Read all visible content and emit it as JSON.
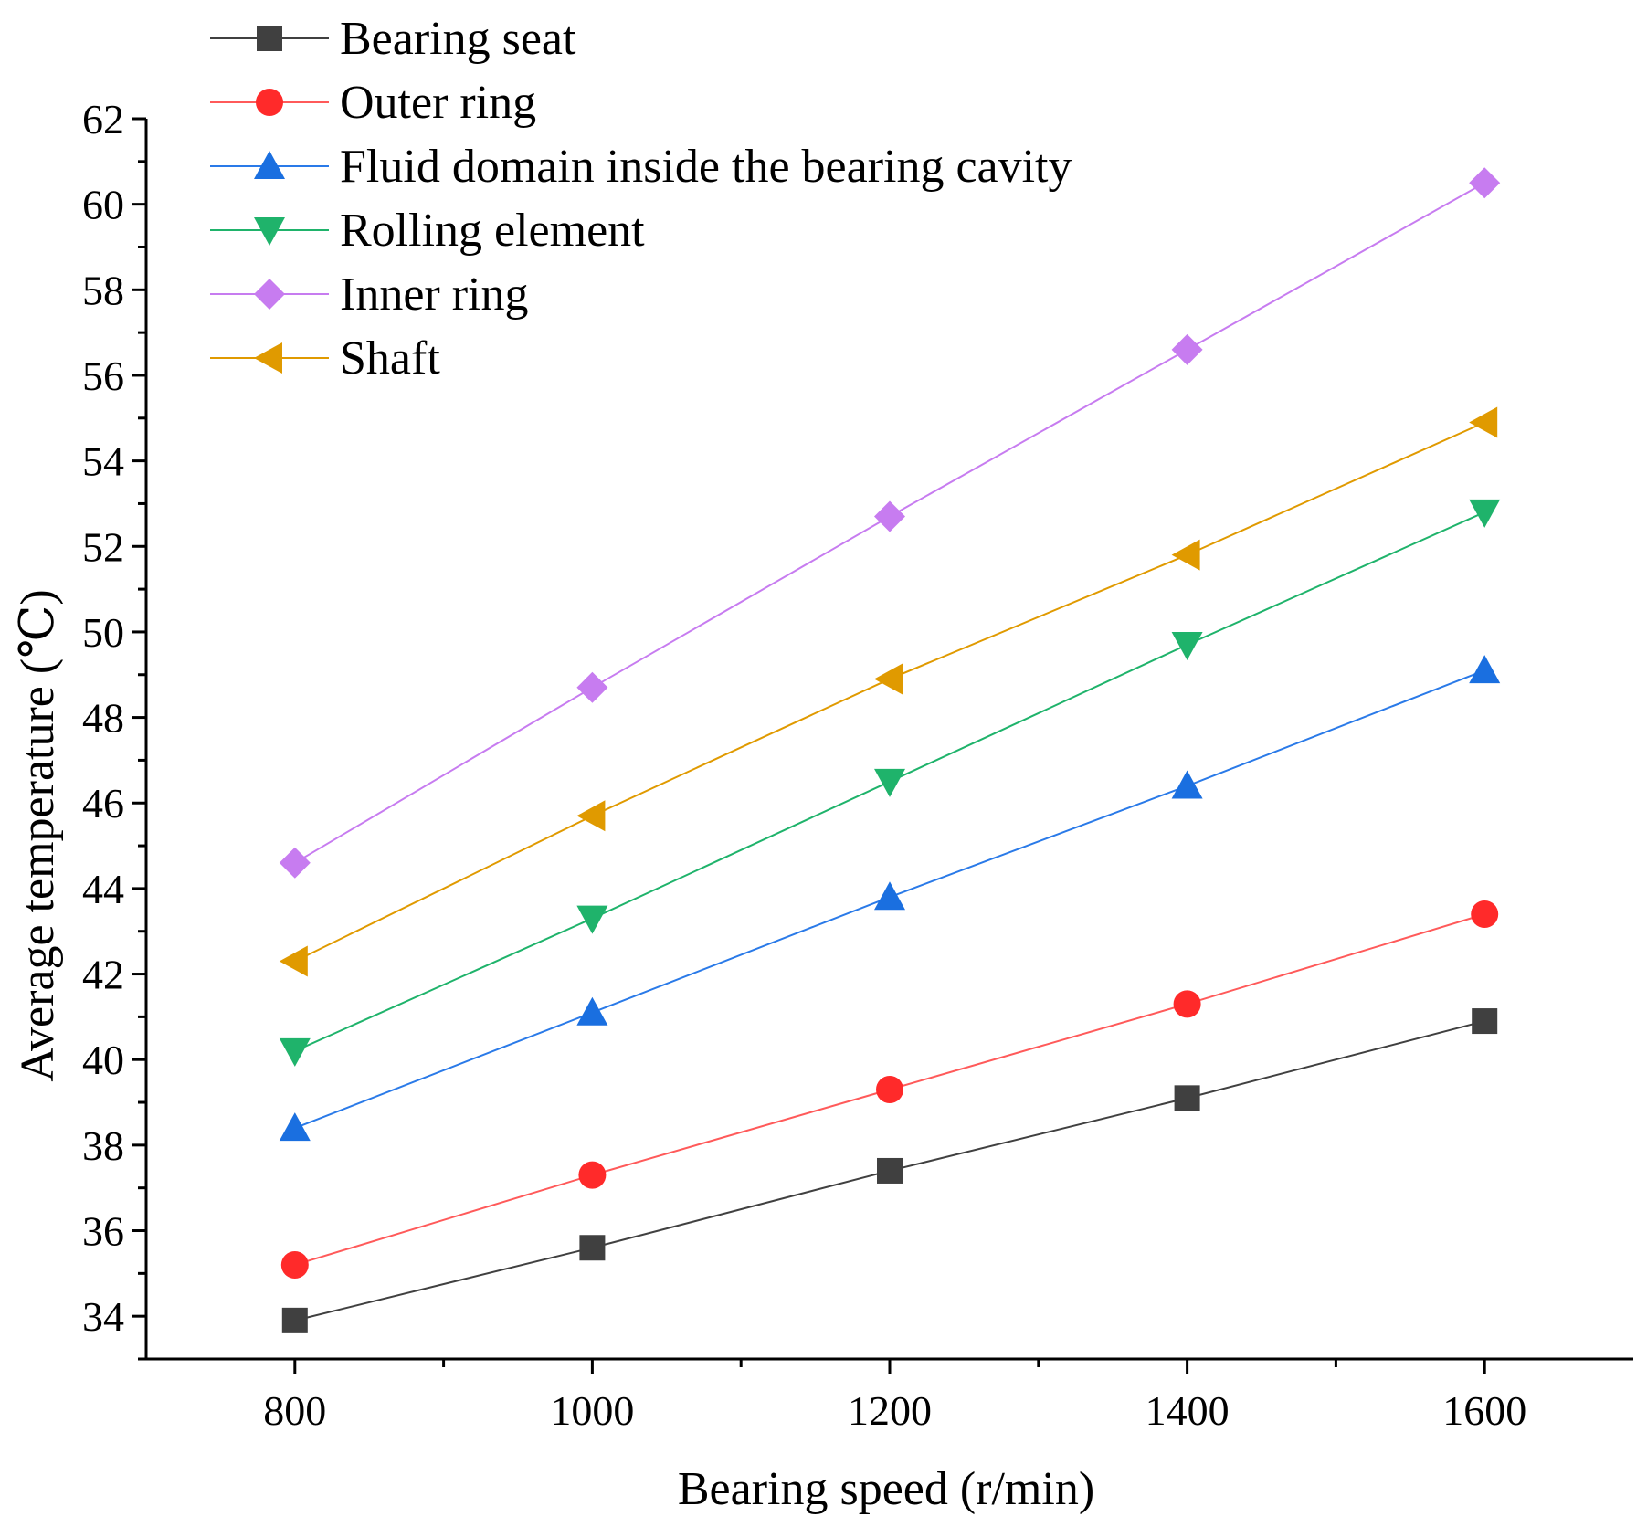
{
  "chart_data": {
    "type": "line",
    "title": "",
    "xlabel": "Bearing speed (r/min)",
    "ylabel": "Average temperature (℃)",
    "x": [
      800,
      1000,
      1200,
      1400,
      1600
    ],
    "xlim": [
      700,
      1700
    ],
    "ylim": [
      33,
      62
    ],
    "x_ticks": [
      800,
      1000,
      1200,
      1400,
      1600
    ],
    "y_ticks": [
      34,
      36,
      38,
      40,
      42,
      44,
      46,
      48,
      50,
      52,
      54,
      56,
      58,
      60,
      62
    ],
    "grid": false,
    "legend_position": "top-left",
    "series": [
      {
        "name": "Bearing seat",
        "marker": "square",
        "color": "#404040",
        "line_color": "#404040",
        "values": [
          33.9,
          35.6,
          37.4,
          39.1,
          40.9
        ]
      },
      {
        "name": "Outer ring",
        "marker": "circle",
        "color": "#ff2a2a",
        "line_color": "#ff5a5a",
        "values": [
          35.2,
          37.3,
          39.3,
          41.3,
          43.4
        ]
      },
      {
        "name": "Fluid domain inside the bearing cavity",
        "marker": "triangle-up",
        "color": "#1a6fe0",
        "line_color": "#2a7ae8",
        "values": [
          38.4,
          41.1,
          43.8,
          46.4,
          49.1
        ]
      },
      {
        "name": "Rolling element",
        "marker": "triangle-down",
        "color": "#1fb36b",
        "line_color": "#1fb36b",
        "values": [
          40.2,
          43.3,
          46.5,
          49.7,
          52.8
        ]
      },
      {
        "name": "Inner ring",
        "marker": "diamond",
        "color": "#c77cf0",
        "line_color": "#c77cf0",
        "values": [
          44.6,
          48.7,
          52.7,
          56.6,
          60.5
        ]
      },
      {
        "name": "Shaft",
        "marker": "triangle-left",
        "color": "#e09a00",
        "line_color": "#e09a00",
        "values": [
          42.3,
          45.7,
          48.9,
          51.8,
          54.9
        ]
      }
    ]
  }
}
